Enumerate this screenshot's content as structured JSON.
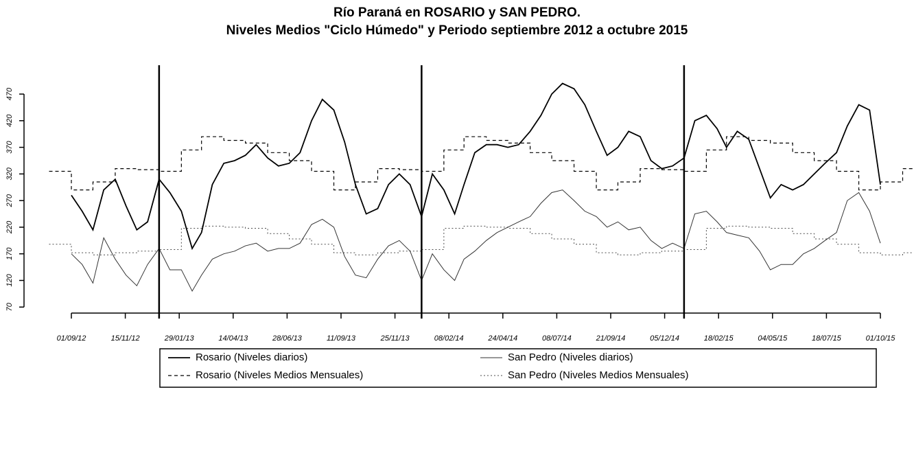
{
  "chart_data": {
    "type": "line",
    "title": "Río Paraná en ROSARIO y SAN PEDRO.",
    "subtitle": "Niveles Medios \"Ciclo Húmedo\" y Periodo septiembre 2012 a octubre 2015",
    "xlim": [
      "15/07/12",
      "15/11/15"
    ],
    "xticks": [
      "01/09/12",
      "15/11/12",
      "29/01/13",
      "14/04/13",
      "28/06/13",
      "11/09/13",
      "25/11/13",
      "08/02/14",
      "24/04/14",
      "08/07/14",
      "21/09/14",
      "05/12/14",
      "18/02/15",
      "04/05/15",
      "18/07/15",
      "01/10/15"
    ],
    "ylim": [
      60,
      510
    ],
    "yticks": [
      70,
      120,
      170,
      220,
      270,
      320,
      370,
      420,
      470
    ],
    "vlines": [
      "01/01/13",
      "01/01/14",
      "01/01/15"
    ],
    "series": [
      {
        "name": "Rosario (Niveles diarios)",
        "color": "#000000",
        "linestyle": "solid",
        "step": false,
        "x": [
          "01/09/12",
          "16/09/12",
          "01/10/12",
          "16/10/12",
          "01/11/12",
          "16/11/12",
          "01/12/12",
          "16/12/12",
          "01/01/13",
          "16/01/13",
          "01/02/13",
          "16/02/13",
          "01/03/13",
          "16/03/13",
          "01/04/13",
          "16/04/13",
          "01/05/13",
          "16/05/13",
          "01/06/13",
          "16/06/13",
          "01/07/13",
          "16/07/13",
          "01/08/13",
          "16/08/13",
          "01/09/13",
          "16/09/13",
          "01/10/13",
          "16/10/13",
          "01/11/13",
          "16/11/13",
          "01/12/13",
          "16/12/13",
          "01/01/14",
          "16/01/14",
          "01/02/14",
          "16/02/14",
          "01/03/14",
          "16/03/14",
          "01/04/14",
          "16/04/14",
          "01/05/14",
          "16/05/14",
          "01/06/14",
          "16/06/14",
          "01/07/14",
          "16/07/14",
          "01/08/14",
          "16/08/14",
          "01/09/14",
          "16/09/14",
          "01/10/14",
          "16/10/14",
          "01/11/14",
          "16/11/14",
          "01/12/14",
          "16/12/14",
          "01/01/15",
          "16/01/15",
          "01/02/15",
          "16/02/15",
          "01/03/15",
          "16/03/15",
          "01/04/15",
          "16/04/15",
          "01/05/15",
          "16/05/15",
          "01/06/15",
          "16/06/15",
          "01/07/15",
          "16/07/15",
          "01/08/15",
          "16/08/15",
          "01/09/15",
          "16/09/15",
          "01/10/15"
        ],
        "values": [
          280,
          250,
          215,
          290,
          310,
          260,
          215,
          230,
          310,
          285,
          250,
          180,
          210,
          300,
          340,
          345,
          355,
          375,
          350,
          335,
          340,
          360,
          420,
          460,
          440,
          380,
          300,
          245,
          255,
          300,
          320,
          300,
          240,
          320,
          290,
          245,
          300,
          360,
          375,
          375,
          370,
          375,
          400,
          430,
          470,
          490,
          480,
          450,
          400,
          355,
          370,
          400,
          390,
          345,
          330,
          335,
          350,
          420,
          430,
          405,
          370,
          400,
          385,
          330,
          275,
          300,
          290,
          300,
          320,
          340,
          360,
          410,
          450,
          440,
          300
        ]
      },
      {
        "name": "San Pedro (Niveles diarios)",
        "color": "#000000",
        "linestyle": "thin",
        "step": false,
        "x": [
          "01/09/12",
          "16/09/12",
          "01/10/12",
          "16/10/12",
          "01/11/12",
          "16/11/12",
          "01/12/12",
          "16/12/12",
          "01/01/13",
          "16/01/13",
          "01/02/13",
          "16/02/13",
          "01/03/13",
          "16/03/13",
          "01/04/13",
          "16/04/13",
          "01/05/13",
          "16/05/13",
          "01/06/13",
          "16/06/13",
          "01/07/13",
          "16/07/13",
          "01/08/13",
          "16/08/13",
          "01/09/13",
          "16/09/13",
          "01/10/13",
          "16/10/13",
          "01/11/13",
          "16/11/13",
          "01/12/13",
          "16/12/13",
          "01/01/14",
          "16/01/14",
          "01/02/14",
          "16/02/14",
          "01/03/14",
          "16/03/14",
          "01/04/14",
          "16/04/14",
          "01/05/14",
          "16/05/14",
          "01/06/14",
          "16/06/14",
          "01/07/14",
          "16/07/14",
          "01/08/14",
          "16/08/14",
          "01/09/14",
          "16/09/14",
          "01/10/14",
          "16/10/14",
          "01/11/14",
          "16/11/14",
          "01/12/14",
          "16/12/14",
          "01/01/15",
          "16/01/15",
          "01/02/15",
          "16/02/15",
          "01/03/15",
          "16/03/15",
          "01/04/15",
          "16/04/15",
          "01/05/15",
          "16/05/15",
          "01/06/15",
          "16/06/15",
          "01/07/15",
          "16/07/15",
          "01/08/15",
          "16/08/15",
          "01/09/15",
          "16/09/15",
          "01/10/15"
        ],
        "values": [
          170,
          150,
          115,
          200,
          160,
          130,
          110,
          150,
          180,
          140,
          140,
          100,
          130,
          160,
          170,
          175,
          185,
          190,
          175,
          180,
          180,
          190,
          225,
          235,
          220,
          165,
          130,
          125,
          160,
          185,
          195,
          175,
          120,
          170,
          140,
          120,
          160,
          175,
          195,
          210,
          220,
          230,
          240,
          265,
          285,
          290,
          270,
          250,
          240,
          220,
          230,
          215,
          220,
          195,
          180,
          190,
          180,
          245,
          250,
          230,
          210,
          205,
          200,
          175,
          140,
          150,
          150,
          170,
          180,
          195,
          210,
          270,
          285,
          250,
          190
        ]
      },
      {
        "name": "Rosario (Niveles Medios Mensuales)",
        "color": "#000000",
        "linestyle": "dashed",
        "step": true,
        "x": [
          "01/08/12",
          "01/09/12",
          "01/10/12",
          "01/11/12",
          "01/12/12",
          "01/01/13",
          "01/02/13",
          "01/03/13",
          "01/04/13",
          "01/05/13",
          "01/06/13",
          "01/07/13",
          "01/08/13",
          "01/09/13",
          "01/10/13",
          "01/11/13",
          "01/12/13",
          "01/01/14",
          "01/02/14",
          "01/03/14",
          "01/04/14",
          "01/05/14",
          "01/06/14",
          "01/07/14",
          "01/08/14",
          "01/09/14",
          "01/10/14",
          "01/11/14",
          "01/12/14",
          "01/01/15",
          "01/02/15",
          "01/03/15",
          "01/04/15",
          "01/05/15",
          "01/06/15",
          "01/07/15",
          "01/08/15",
          "01/09/15",
          "01/10/15",
          "01/11/15"
        ],
        "values": [
          325,
          290,
          305,
          330,
          328,
          325,
          365,
          390,
          383,
          378,
          360,
          345,
          325,
          290,
          305,
          330,
          328,
          325,
          365,
          390,
          383,
          378,
          360,
          345,
          325,
          290,
          305,
          330,
          328,
          325,
          365,
          390,
          383,
          378,
          360,
          345,
          325,
          290,
          305,
          330
        ]
      },
      {
        "name": "San Pedro (Niveles Medios Mensuales)",
        "color": "#000000",
        "linestyle": "dotted",
        "step": true,
        "x": [
          "01/08/12",
          "01/09/12",
          "01/10/12",
          "01/11/12",
          "01/12/12",
          "01/01/13",
          "01/02/13",
          "01/03/13",
          "01/04/13",
          "01/05/13",
          "01/06/13",
          "01/07/13",
          "01/08/13",
          "01/09/13",
          "01/10/13",
          "01/11/13",
          "01/12/13",
          "01/01/14",
          "01/02/14",
          "01/03/14",
          "01/04/14",
          "01/05/14",
          "01/06/14",
          "01/07/14",
          "01/08/14",
          "01/09/14",
          "01/10/14",
          "01/11/14",
          "01/12/14",
          "01/01/15",
          "01/02/15",
          "01/03/15",
          "01/04/15",
          "01/05/15",
          "01/06/15",
          "01/07/15",
          "01/08/15",
          "01/09/15",
          "01/10/15",
          "01/11/15"
        ],
        "values": [
          188,
          172,
          168,
          172,
          175,
          178,
          218,
          222,
          220,
          218,
          208,
          198,
          188,
          172,
          168,
          172,
          175,
          178,
          218,
          222,
          220,
          218,
          208,
          198,
          188,
          172,
          168,
          172,
          175,
          178,
          218,
          222,
          220,
          218,
          208,
          198,
          188,
          172,
          168,
          172
        ]
      }
    ]
  }
}
